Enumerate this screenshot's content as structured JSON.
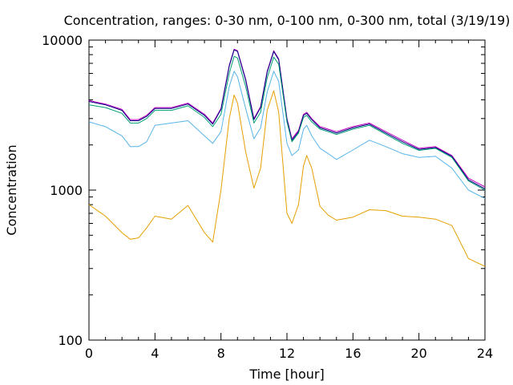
{
  "chart_data": {
    "type": "line",
    "title": "Concentration, ranges: 0-30 nm, 0-100 nm, 0-300 nm, total (3/19/19)",
    "xlabel": "Time [hour]",
    "ylabel": "Concentration",
    "xlim": [
      0,
      24
    ],
    "ylim": [
      100,
      10000
    ],
    "yscale": "log",
    "grid": false,
    "legend": "none",
    "x_ticks": [
      0,
      4,
      8,
      12,
      16,
      20,
      24
    ],
    "x_tick_labels": [
      "0",
      "4",
      "8",
      "12",
      "16",
      "20",
      "24"
    ],
    "y_ticks": [
      100,
      1000,
      10000
    ],
    "y_tick_labels": [
      "100",
      "1000",
      "10000"
    ],
    "x": [
      0,
      1,
      2,
      2.5,
      3,
      3.5,
      4,
      5,
      6,
      7,
      7.5,
      8,
      8.5,
      8.8,
      9,
      9.5,
      10,
      10.4,
      10.8,
      11.2,
      11.5,
      12,
      12.3,
      12.7,
      13,
      13.2,
      13.5,
      14,
      14.5,
      15,
      16,
      17,
      18,
      19,
      20,
      21,
      22,
      23,
      24
    ],
    "series": [
      {
        "color": "#c000c0",
        "values": [
          3950,
          3750,
          3450,
          2950,
          2950,
          3150,
          3550,
          3550,
          3800,
          3200,
          2800,
          3500,
          6800,
          8700,
          8500,
          5500,
          3000,
          3600,
          6200,
          8500,
          7500,
          3000,
          2200,
          2500,
          3200,
          3300,
          3000,
          2650,
          2550,
          2450,
          2650,
          2800,
          2450,
          2150,
          1900,
          1950,
          1700,
          1200,
          1050
        ]
      },
      {
        "color": "#000080",
        "values": [
          3900,
          3700,
          3400,
          2900,
          2900,
          3100,
          3500,
          3500,
          3750,
          3150,
          2750,
          3450,
          6700,
          8600,
          8400,
          5400,
          2950,
          3550,
          6100,
          8400,
          7400,
          2950,
          2150,
          2450,
          3150,
          3250,
          2950,
          2600,
          2500,
          2400,
          2600,
          2750,
          2400,
          2100,
          1870,
          1920,
          1680,
          1170,
          1020
        ]
      },
      {
        "color": "#009e73",
        "values": [
          3700,
          3550,
          3250,
          2800,
          2800,
          3000,
          3400,
          3400,
          3650,
          3050,
          2650,
          3200,
          6000,
          7800,
          7600,
          4900,
          2800,
          3300,
          5600,
          7700,
          6900,
          2850,
          2100,
          2400,
          3050,
          3150,
          2850,
          2550,
          2450,
          2350,
          2550,
          2700,
          2350,
          2050,
          1840,
          1900,
          1650,
          1150,
          1000
        ]
      },
      {
        "color": "#56b4e9",
        "values": [
          2850,
          2650,
          2300,
          1950,
          1950,
          2100,
          2700,
          2800,
          2900,
          2300,
          2050,
          2450,
          4900,
          6200,
          5700,
          3500,
          2200,
          2600,
          4500,
          6200,
          5300,
          2050,
          1700,
          1850,
          2550,
          2700,
          2300,
          1900,
          1750,
          1600,
          1850,
          2150,
          1950,
          1750,
          1650,
          1680,
          1400,
          1000,
          880
        ]
      },
      {
        "color": "#e69f00",
        "values": [
          800,
          670,
          520,
          470,
          480,
          560,
          670,
          640,
          790,
          520,
          450,
          1000,
          3000,
          4300,
          3800,
          1800,
          1030,
          1400,
          3400,
          4600,
          3300,
          700,
          600,
          800,
          1450,
          1700,
          1400,
          780,
          680,
          630,
          660,
          740,
          730,
          670,
          660,
          640,
          580,
          350,
          310
        ]
      }
    ]
  }
}
